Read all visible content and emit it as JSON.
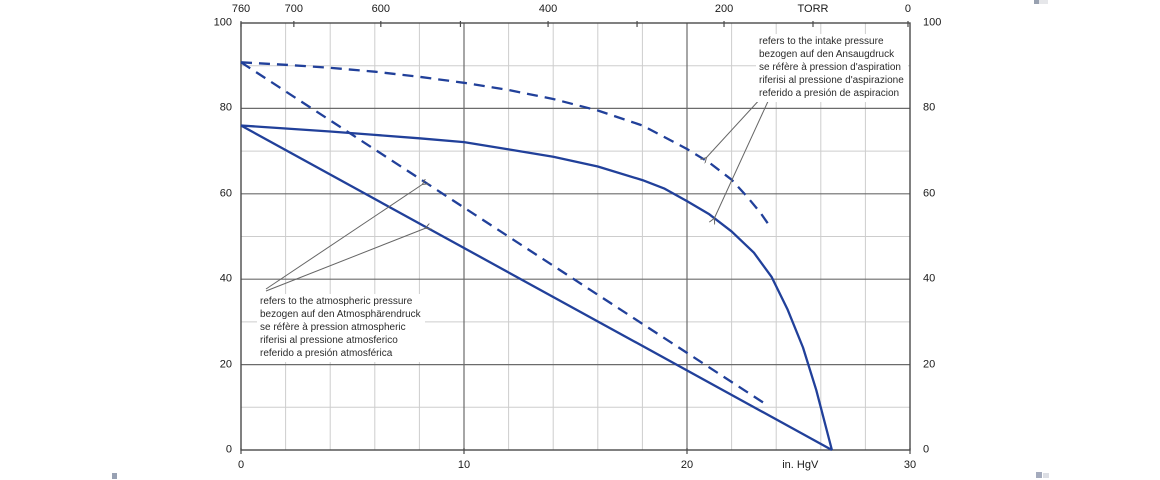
{
  "chart_data": {
    "type": "line",
    "description": "Vacuum pump capacity curves (% of nominal flow) versus vacuum level",
    "x_axis_bottom": {
      "unit": "in. HgV",
      "unit_pct": 83.6,
      "range": [
        0,
        30
      ],
      "major_ticks": [
        0,
        10,
        20,
        30
      ],
      "minor_step": 2
    },
    "x_axis_top": {
      "unit": "TORR",
      "unit_pct": 85.5,
      "ticks": [
        {
          "label": "760",
          "pct": 0
        },
        {
          "label": "700",
          "pct": 7.9
        },
        {
          "label": "600",
          "pct": 20.9
        },
        {
          "label": "",
          "pct": 32.8
        },
        {
          "label": "400",
          "pct": 45.9
        },
        {
          "label": "",
          "pct": 59.2
        },
        {
          "label": "200",
          "pct": 72.2
        },
        {
          "label": "",
          "pct": 85.5
        },
        {
          "label": "0",
          "pct": 99.7
        }
      ]
    },
    "y_axis": {
      "range": [
        0,
        100
      ],
      "major_ticks": [
        0,
        20,
        40,
        60,
        80,
        100
      ],
      "minor_step": 10,
      "sides": [
        "left",
        "right"
      ]
    },
    "series": [
      {
        "name": "capacity-referred-to-intake-pressure-solid",
        "style": "solid",
        "points": [
          [
            0,
            76
          ],
          [
            2,
            75.3
          ],
          [
            4,
            74.6
          ],
          [
            6,
            73.8
          ],
          [
            8,
            73
          ],
          [
            10,
            72.1
          ],
          [
            12,
            70.4
          ],
          [
            14,
            68.7
          ],
          [
            16,
            66.4
          ],
          [
            18,
            63.2
          ],
          [
            19,
            61.2
          ],
          [
            20,
            58.3
          ],
          [
            21,
            55.2
          ],
          [
            22,
            51.2
          ],
          [
            23,
            46.2
          ],
          [
            23.8,
            40.5
          ],
          [
            24.5,
            33
          ],
          [
            25.2,
            24
          ],
          [
            25.8,
            14
          ],
          [
            26.5,
            0
          ]
        ]
      },
      {
        "name": "capacity-referred-to-intake-pressure-dashed",
        "style": "dashed",
        "points": [
          [
            0,
            90.8
          ],
          [
            2,
            90.2
          ],
          [
            4,
            89.5
          ],
          [
            6,
            88.6
          ],
          [
            8,
            87.4
          ],
          [
            10,
            86
          ],
          [
            12,
            84.3
          ],
          [
            14,
            82.2
          ],
          [
            16,
            79.5
          ],
          [
            18,
            76
          ],
          [
            20,
            70.5
          ],
          [
            21,
            67.3
          ],
          [
            22,
            63.3
          ],
          [
            22.7,
            59.3
          ],
          [
            23.3,
            55.5
          ],
          [
            23.7,
            52.5
          ]
        ]
      },
      {
        "name": "capacity-referred-to-atmospheric-pressure-solid",
        "style": "solid",
        "points": [
          [
            0,
            76
          ],
          [
            26.5,
            0
          ]
        ]
      },
      {
        "name": "capacity-referred-to-atmospheric-pressure-dashed",
        "style": "dashed",
        "points": [
          [
            0,
            90.8
          ],
          [
            23.6,
            10.5
          ]
        ]
      }
    ],
    "annotations": {
      "intake": {
        "lines": [
          "refers to the intake pressure",
          "bezogen auf den Ansaugdruck",
          "se réfère à pression d'aspiration",
          "riferisi al pressione d'aspirazione",
          "referido a presión de aspiracion"
        ],
        "arrows": [
          {
            "from": [
              521,
              74
            ],
            "to": [
              465,
              135
            ]
          },
          {
            "from": [
              529,
              74
            ],
            "to": [
              473,
              196
            ]
          }
        ]
      },
      "atmospheric": {
        "lines": [
          "refers to the atmospheric pressure",
          "bezogen auf den Atmosphärendruck",
          "se réfère à pression atmospheric",
          "riferisi al pressione atmosferico",
          "referido a presión atmosférica"
        ],
        "arrows": [
          {
            "from": [
              25,
              266
            ],
            "to": [
              182,
              161
            ]
          },
          {
            "from": [
              25,
              268
            ],
            "to": [
              185,
              205
            ]
          }
        ]
      }
    },
    "colors": {
      "curve": "#21409a",
      "grid_minor": "#cdcdcd",
      "grid_major": "#6b6b6b",
      "frame": "#4a4a4a",
      "leader": "#666666",
      "text": "#1a1a1a",
      "background": "#ffffff"
    }
  }
}
